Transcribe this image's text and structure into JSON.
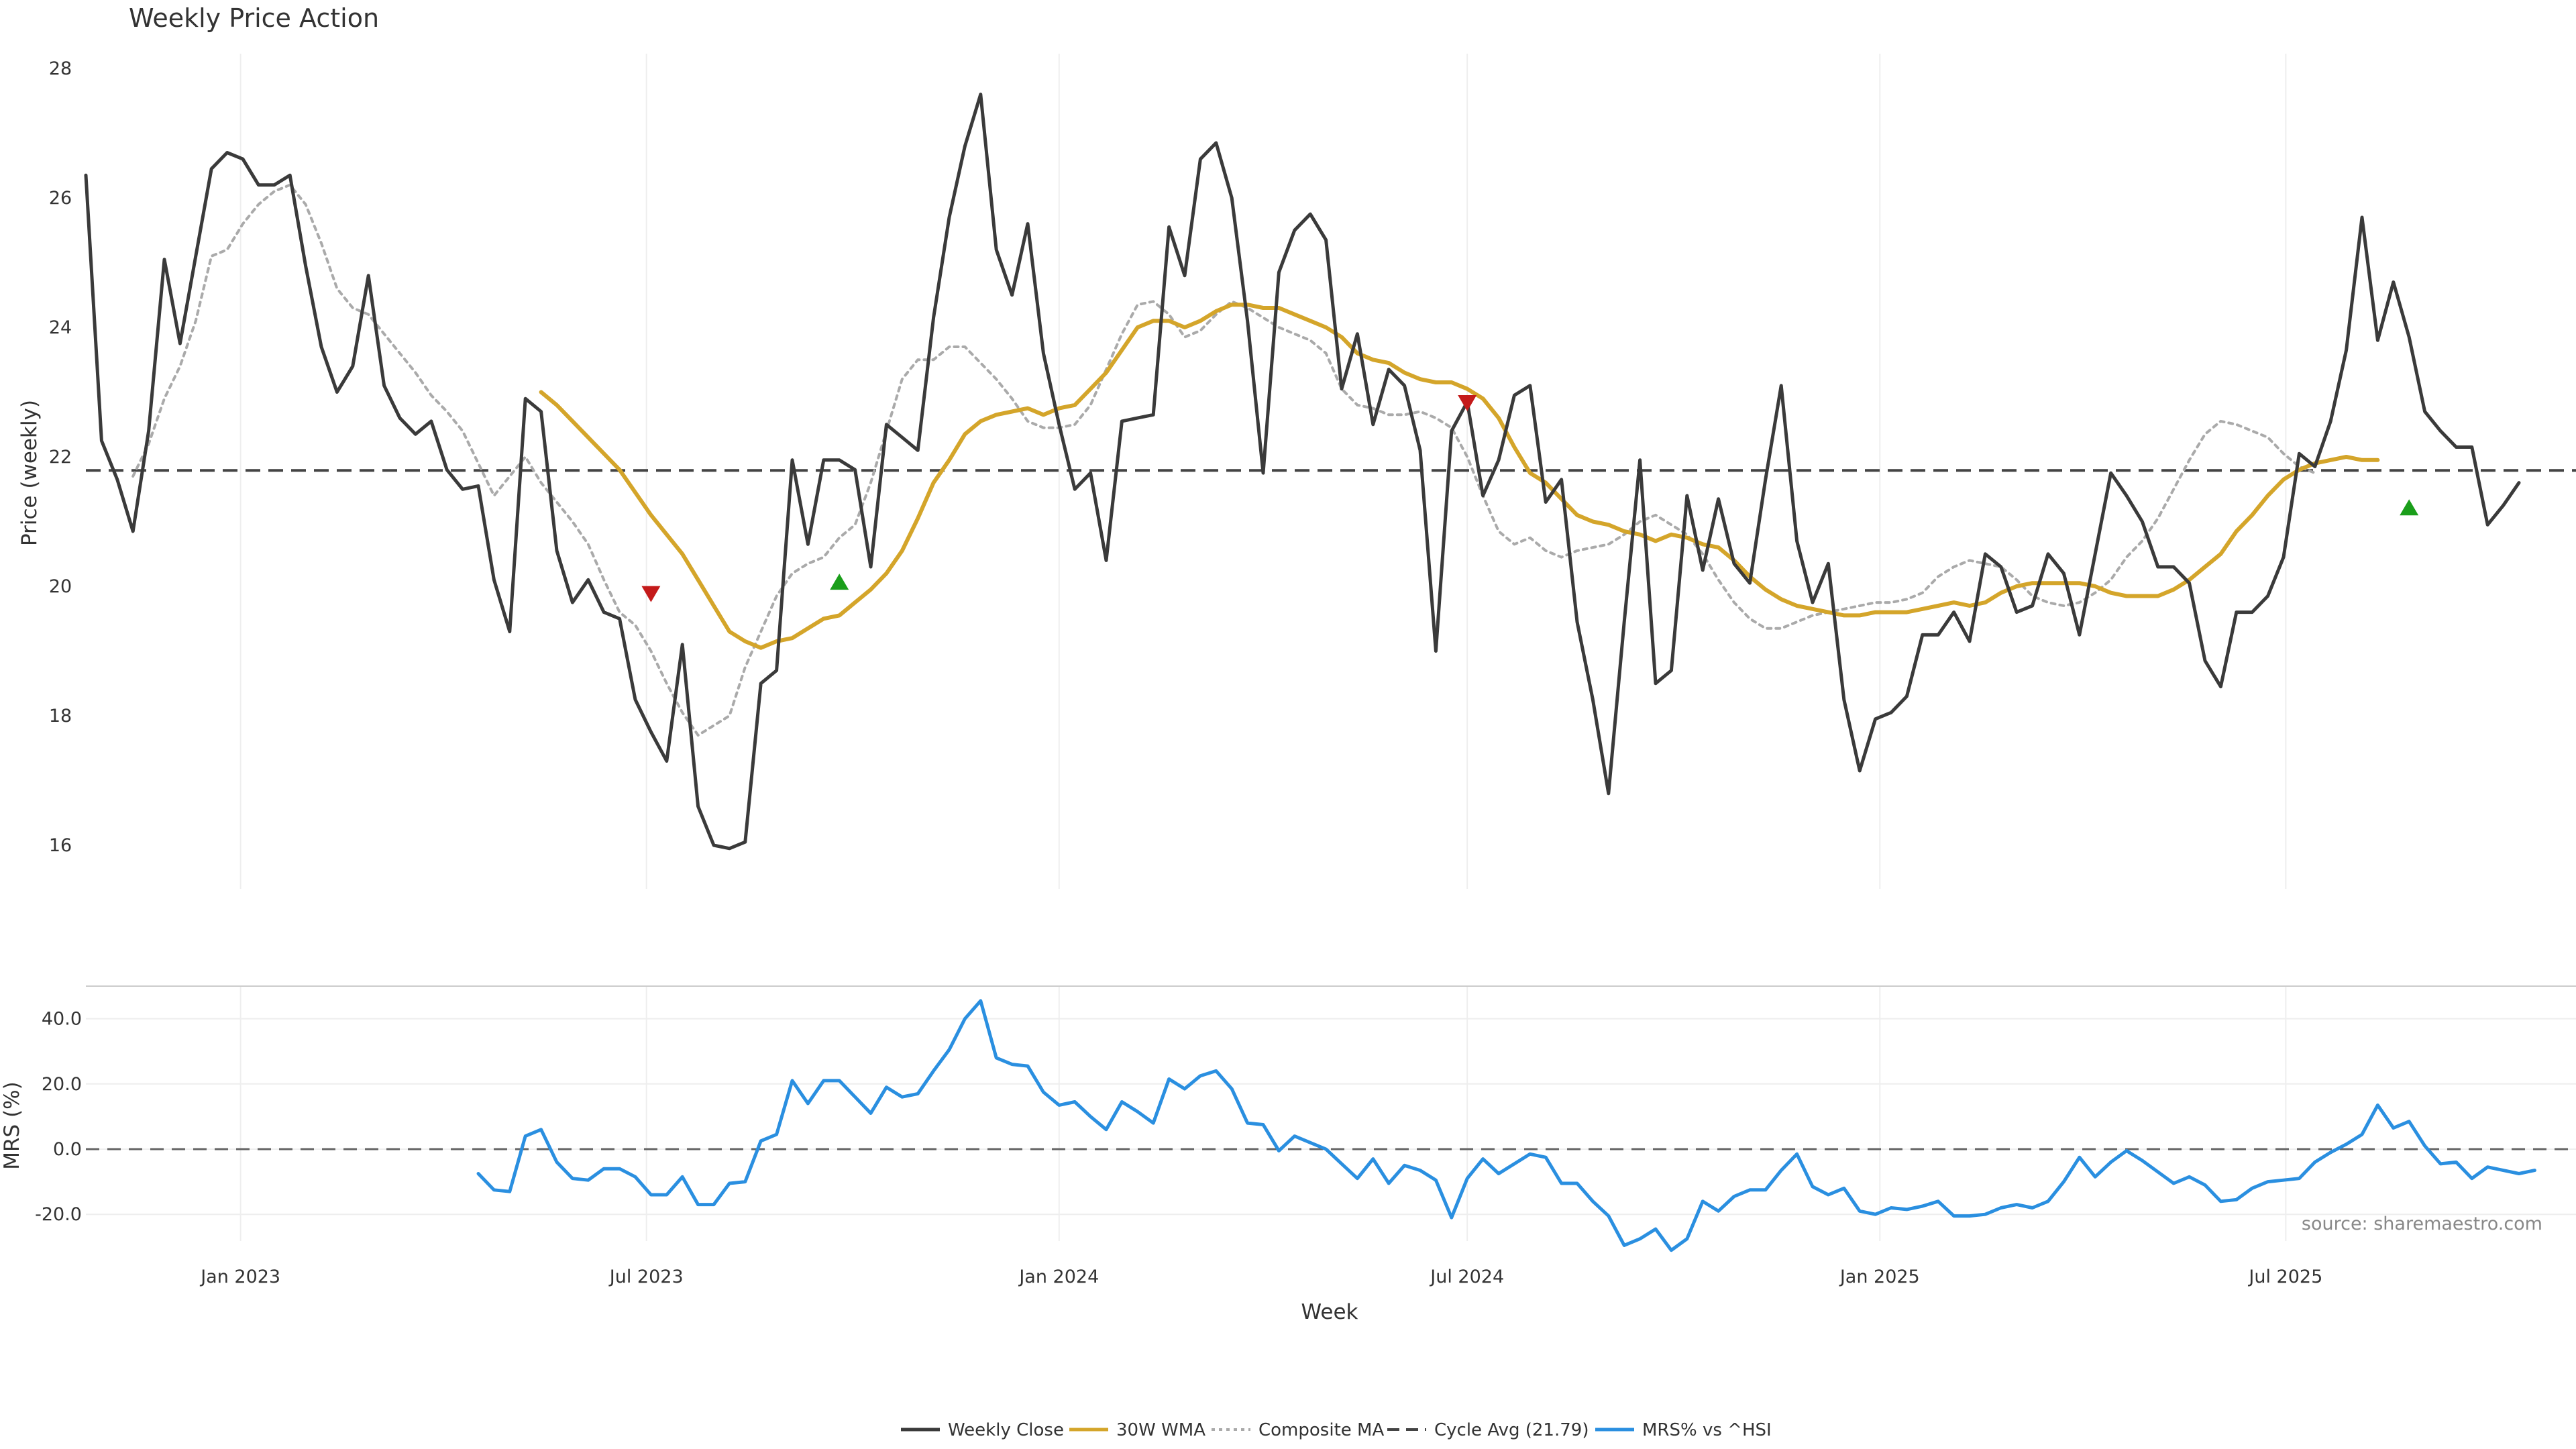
{
  "colors": {
    "close": "#3a3a3a",
    "wma": "#d4a52a",
    "composite": "#aaaaaa",
    "cycle": "#444444",
    "mrs": "#2a8fe0",
    "signal_up": "#1a9e1a",
    "signal_down": "#c41a1a",
    "grid": "#eeeeee",
    "divider": "#cccccc",
    "source": "#888888"
  },
  "chart_data": [
    {
      "type": "line",
      "title": "Weekly Price Action",
      "ylabel": "Price (weekly)",
      "ylim": [
        15.4,
        28.3
      ],
      "yticks": [
        16,
        18,
        20,
        22,
        24,
        26,
        28
      ],
      "grid": "vertical",
      "x_axis": {
        "start": "2022-10-24",
        "interval": "week",
        "tick_dates": [
          "2023-01-01",
          "2023-07-01",
          "2024-01-01",
          "2024-07-01",
          "2025-01-01",
          "2025-07-01"
        ]
      },
      "cycle_avg": 21.79,
      "series": [
        {
          "name": "Weekly Close",
          "style": "solid",
          "start_index": 0,
          "values": [
            26.35,
            22.25,
            21.65,
            20.85,
            22.4,
            25.05,
            23.75,
            25.1,
            26.45,
            26.7,
            26.6,
            26.2,
            26.2,
            26.35,
            24.95,
            23.7,
            23.0,
            23.4,
            24.8,
            23.1,
            22.6,
            22.35,
            22.55,
            21.8,
            21.5,
            21.55,
            20.1,
            19.3,
            22.9,
            22.7,
            20.55,
            19.75,
            20.1,
            19.6,
            19.5,
            18.25,
            17.75,
            17.3,
            19.1,
            16.6,
            16.0,
            15.95,
            16.05,
            18.5,
            18.7,
            21.95,
            20.65,
            21.95,
            21.95,
            21.8,
            20.3,
            22.5,
            22.3,
            22.1,
            24.15,
            25.7,
            26.8,
            27.6,
            25.2,
            24.5,
            25.6,
            23.6,
            22.5,
            21.5,
            21.75,
            20.4,
            22.55,
            22.6,
            22.65,
            25.55,
            24.8,
            26.6,
            26.85,
            26.0,
            24.1,
            21.75,
            24.85,
            25.5,
            25.75,
            25.35,
            23.05,
            23.9,
            22.5,
            23.35,
            23.1,
            22.1,
            19.0,
            22.4,
            22.85,
            21.4,
            21.95,
            22.95,
            23.1,
            21.3,
            21.65,
            19.45,
            18.25,
            16.8,
            19.45,
            21.95,
            18.5,
            18.7,
            21.4,
            20.25,
            21.35,
            20.35,
            20.05,
            21.65,
            23.1,
            20.7,
            19.75,
            20.35,
            18.25,
            17.15,
            17.95,
            18.05,
            18.3,
            19.25,
            19.25,
            19.6,
            19.15,
            20.5,
            20.3,
            19.6,
            19.7,
            20.5,
            20.2,
            19.25,
            20.5,
            21.75,
            21.4,
            21.0,
            20.3,
            20.3,
            20.05,
            18.85,
            18.45,
            19.6,
            19.6,
            19.85,
            20.45,
            22.05,
            21.85,
            22.55,
            23.65,
            25.7,
            23.8,
            24.7,
            23.85,
            22.7,
            22.4,
            22.15,
            22.15,
            20.95,
            21.25,
            21.6
          ]
        },
        {
          "name": "30W WMA",
          "style": "solid",
          "start_index": 29,
          "values": [
            23.0,
            22.8,
            22.55,
            22.3,
            22.05,
            21.8,
            21.45,
            21.1,
            20.8,
            20.5,
            20.1,
            19.7,
            19.3,
            19.15,
            19.05,
            19.15,
            19.2,
            19.35,
            19.5,
            19.55,
            19.75,
            19.95,
            20.2,
            20.55,
            21.05,
            21.6,
            21.95,
            22.35,
            22.55,
            22.65,
            22.7,
            22.75,
            22.65,
            22.75,
            22.8,
            23.05,
            23.3,
            23.65,
            24.0,
            24.1,
            24.1,
            24.0,
            24.1,
            24.25,
            24.35,
            24.35,
            24.3,
            24.3,
            24.2,
            24.1,
            24.0,
            23.85,
            23.6,
            23.5,
            23.45,
            23.3,
            23.2,
            23.15,
            23.15,
            23.05,
            22.9,
            22.6,
            22.15,
            21.75,
            21.6,
            21.35,
            21.1,
            21.0,
            20.95,
            20.85,
            20.8,
            20.7,
            20.8,
            20.75,
            20.65,
            20.6,
            20.4,
            20.15,
            19.95,
            19.8,
            19.7,
            19.65,
            19.6,
            19.55,
            19.55,
            19.6,
            19.6,
            19.6,
            19.65,
            19.7,
            19.75,
            19.7,
            19.75,
            19.9,
            20.0,
            20.05,
            20.05,
            20.05,
            20.05,
            20.0,
            19.9,
            19.85,
            19.85,
            19.85,
            19.95,
            20.1,
            20.3,
            20.5,
            20.85,
            21.1,
            21.4,
            21.65,
            21.8,
            21.9,
            21.95,
            22.0,
            21.95,
            21.95
          ]
        },
        {
          "name": "Composite MA",
          "style": "dotted",
          "start_index": 3,
          "values": [
            21.7,
            22.2,
            22.9,
            23.4,
            24.1,
            25.1,
            25.2,
            25.6,
            25.9,
            26.1,
            26.2,
            25.9,
            25.3,
            24.6,
            24.3,
            24.2,
            23.9,
            23.6,
            23.3,
            22.95,
            22.7,
            22.4,
            21.9,
            21.4,
            21.7,
            22.0,
            21.6,
            21.3,
            21.0,
            20.65,
            20.1,
            19.6,
            19.4,
            19.0,
            18.5,
            18.05,
            17.7,
            17.85,
            18.0,
            18.75,
            19.3,
            19.85,
            20.2,
            20.35,
            20.45,
            20.75,
            20.95,
            21.6,
            22.4,
            23.2,
            23.5,
            23.5,
            23.7,
            23.7,
            23.45,
            23.2,
            22.9,
            22.55,
            22.45,
            22.45,
            22.5,
            22.8,
            23.35,
            23.9,
            24.35,
            24.4,
            24.2,
            23.85,
            23.95,
            24.2,
            24.4,
            24.3,
            24.15,
            24.0,
            23.9,
            23.8,
            23.6,
            23.05,
            22.8,
            22.75,
            22.65,
            22.65,
            22.7,
            22.6,
            22.45,
            22.0,
            21.4,
            20.85,
            20.65,
            20.75,
            20.55,
            20.45,
            20.55,
            20.6,
            20.65,
            20.8,
            21.0,
            21.1,
            20.95,
            20.8,
            20.5,
            20.1,
            19.75,
            19.5,
            19.35,
            19.35,
            19.45,
            19.55,
            19.6,
            19.65,
            19.7,
            19.75,
            19.75,
            19.8,
            19.9,
            20.15,
            20.3,
            20.4,
            20.35,
            20.3,
            20.1,
            19.85,
            19.75,
            19.7,
            19.75,
            19.9,
            20.1,
            20.45,
            20.7,
            21.05,
            21.5,
            21.95,
            22.35,
            22.55,
            22.5,
            22.4,
            22.3,
            22.05,
            21.85,
            21.75
          ]
        }
      ],
      "signals": [
        {
          "index": 36,
          "y": 19.9,
          "direction": "down"
        },
        {
          "index": 48,
          "y": 20.05,
          "direction": "up"
        },
        {
          "index": 88,
          "y": 22.85,
          "direction": "down"
        },
        {
          "index": 148,
          "y": 21.2,
          "direction": "up"
        }
      ]
    },
    {
      "type": "line",
      "ylabel": "MRS (%)",
      "xlabel": "Week",
      "ylim": [
        -32,
        48
      ],
      "yticks": [
        40.0,
        20.0,
        0.0,
        -20.0
      ],
      "ytick_labels": [
        "40.0",
        "20.0",
        "0.0",
        "-20.0"
      ],
      "xtick_labels": [
        "Jan 2023",
        "Jul 2023",
        "Jan 2024",
        "Jul 2024",
        "Jan 2025",
        "Jul 2025"
      ],
      "zero_line": 0,
      "series": [
        {
          "name": "MRS% vs ^HSI",
          "start_index": 25,
          "values": [
            -7.5,
            -12.5,
            -13.0,
            4.0,
            6.0,
            -4.0,
            -9.0,
            -9.5,
            -6.0,
            -6.0,
            -8.5,
            -14.0,
            -14.0,
            -8.5,
            -17.0,
            -17.0,
            -10.5,
            -10.0,
            2.5,
            4.5,
            21.0,
            14.0,
            21.0,
            21.0,
            16.0,
            11.0,
            19.0,
            16.0,
            17.0,
            24.0,
            30.5,
            40.0,
            45.5,
            28.0,
            26.0,
            25.5,
            17.5,
            13.5,
            14.5,
            10.0,
            6.0,
            14.5,
            11.5,
            8.0,
            21.5,
            18.5,
            22.5,
            24.0,
            18.5,
            8.0,
            7.5,
            -0.5,
            4.0,
            2.0,
            0.0,
            -4.5,
            -9.0,
            -3.0,
            -10.5,
            -5.0,
            -6.5,
            -9.5,
            -21.0,
            -9.0,
            -3.0,
            -7.5,
            -4.5,
            -1.5,
            -2.5,
            -10.5,
            -10.5,
            -16.0,
            -20.5,
            -29.5,
            -27.5,
            -24.5,
            -31.0,
            -27.5,
            -16.0,
            -19.0,
            -14.5,
            -12.5,
            -12.5,
            -6.5,
            -1.5,
            -11.5,
            -14.0,
            -12.0,
            -19.0,
            -20.0,
            -18.0,
            -18.5,
            -17.5,
            -16.0,
            -20.5,
            -20.5,
            -20.0,
            -18.0,
            -17.0,
            -18.0,
            -16.0,
            -10.0,
            -2.5,
            -8.5,
            -4.0,
            -0.5,
            -3.5,
            -7.0,
            -10.5,
            -8.5,
            -11.0,
            -16.0,
            -15.5,
            -12.0,
            -10.0,
            -9.5,
            -9.0,
            -4.0,
            -1.0,
            1.5,
            4.5,
            13.5,
            6.5,
            8.5,
            1.0,
            -4.5,
            -4.0,
            -9.0,
            -5.5,
            -6.5,
            -7.5,
            -6.5
          ]
        }
      ]
    }
  ],
  "source": "source: sharemaestro.com",
  "legend": [
    {
      "label": "Weekly Close",
      "style": "solid",
      "color": "#3a3a3a"
    },
    {
      "label": "30W WMA",
      "style": "solid",
      "color": "#d4a52a"
    },
    {
      "label": "Composite MA",
      "style": "dotted",
      "color": "#aaaaaa"
    },
    {
      "label": "Cycle Avg (21.79)",
      "style": "dashed",
      "color": "#444444"
    },
    {
      "label": "MRS% vs ^HSI",
      "style": "solid",
      "color": "#2a8fe0"
    }
  ]
}
